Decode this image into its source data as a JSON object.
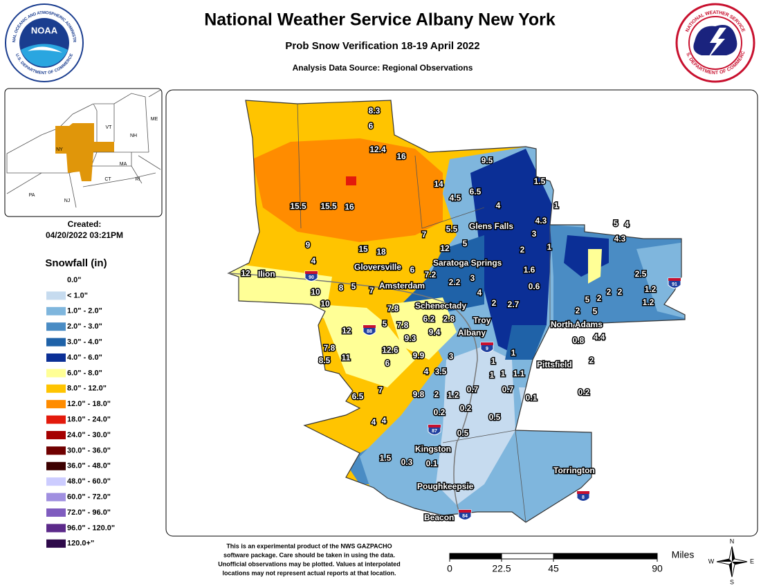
{
  "header": {
    "title": "National Weather Service Albany New York",
    "subtitle": "Prob Snow Verification 18-19 April 2022",
    "source": "Analysis Data Source: Regional Observations"
  },
  "logos": {
    "noaa": {
      "name": "NOAA",
      "ring_top": "NATIONAL OCEANIC AND ATMOSPHERIC ADMINISTRATION",
      "ring_bottom": "U.S. DEPARTMENT OF COMMERCE"
    },
    "nws": {
      "ring_top": "NATIONAL WEATHER SERVICE",
      "ring_bottom": "U.S. DEPARTMENT OF COMMERCE"
    }
  },
  "inset": {
    "labels": [
      "ME",
      "VT",
      "NH",
      "NY",
      "MA",
      "CT",
      "RI",
      "PA",
      "NJ"
    ],
    "highlight_color": "#e0960a"
  },
  "created": {
    "label": "Created:",
    "timestamp": "04/20/2022 03:21PM"
  },
  "legend": {
    "title": "Snowfall (in)",
    "items": [
      {
        "label": "0.0\"",
        "color": "#ffffff"
      },
      {
        "label": "< 1.0\"",
        "color": "#c6dbef"
      },
      {
        "label": "1.0\" - 2.0\"",
        "color": "#7fb6dd"
      },
      {
        "label": "2.0\" - 3.0\"",
        "color": "#4a8cc4"
      },
      {
        "label": "3.0\" - 4.0\"",
        "color": "#1f62a8"
      },
      {
        "label": "4.0\" - 6.0\"",
        "color": "#0b2f96"
      },
      {
        "label": "6.0\" - 8.0\"",
        "color": "#ffff96"
      },
      {
        "label": "8.0\" - 12.0\"",
        "color": "#ffc400"
      },
      {
        "label": "12.0\" - 18.0\"",
        "color": "#ff8c00"
      },
      {
        "label": "18.0\" - 24.0\"",
        "color": "#e31a0c"
      },
      {
        "label": "24.0\" - 30.0\"",
        "color": "#a50000"
      },
      {
        "label": "30.0\" - 36.0\"",
        "color": "#700000"
      },
      {
        "label": "36.0\" - 48.0\"",
        "color": "#3c0000"
      },
      {
        "label": "48.0\" - 60.0\"",
        "color": "#ccccff"
      },
      {
        "label": "60.0\" - 72.0\"",
        "color": "#a08fe0"
      },
      {
        "label": "72.0\" - 96.0\"",
        "color": "#7f5cbf"
      },
      {
        "label": "96.0\" - 120.0\"",
        "color": "#5c2a8a"
      },
      {
        "label": "120.0+\"",
        "color": "#2e0a4a"
      }
    ]
  },
  "map": {
    "cities": [
      "Ilion",
      "Gloversville",
      "Amsterdam",
      "Schenectady",
      "Saratoga Springs",
      "Glens Falls",
      "Troy",
      "Albany",
      "North Adams",
      "Pittsfield",
      "Kingston",
      "Poughkeepsie",
      "Beacon",
      "Torrington"
    ],
    "highways": [
      "90",
      "88",
      "9",
      "87",
      "91",
      "84",
      "8"
    ],
    "observations": [
      8.3,
      6,
      12.4,
      16,
      9.5,
      1.5,
      14,
      6.5,
      4.5,
      4,
      1,
      15.5,
      15.5,
      16,
      4.3,
      5.5,
      3,
      7,
      5,
      2,
      1,
      9,
      15,
      18,
      12,
      4,
      5,
      4,
      4.3,
      6,
      7.2,
      1.6,
      3,
      2.2,
      12,
      8,
      5,
      7,
      0.6,
      2.5,
      1.2,
      1.2,
      10,
      4,
      2,
      2.7,
      2,
      2,
      2,
      10,
      5,
      2,
      5,
      7.8,
      6.2,
      2.8,
      12,
      5,
      7.8,
      9.4,
      9.3,
      0.8,
      4.4,
      7.8,
      12.6,
      1,
      8.5,
      11,
      9.9,
      3,
      1,
      2,
      6,
      4,
      3.5,
      1,
      1,
      1.1,
      7,
      9.8,
      2,
      1.2,
      0.7,
      0.7,
      6.5,
      0.1,
      0.2,
      0.2,
      0.2,
      4,
      4,
      0.5,
      0.5,
      1.5,
      0.3,
      0.1
    ]
  },
  "footnote": [
    "This is an experimental product of the NWS GAZPACHO",
    "software package. Care should be taken in using the data.",
    "Unofficial observations may be plotted. Values at interpolated",
    "locations may not represent actual reports at that location."
  ],
  "scale": {
    "unit": "Miles",
    "ticks": [
      0,
      22.5,
      45,
      90
    ]
  },
  "compass": [
    "N",
    "E",
    "S",
    "W"
  ]
}
